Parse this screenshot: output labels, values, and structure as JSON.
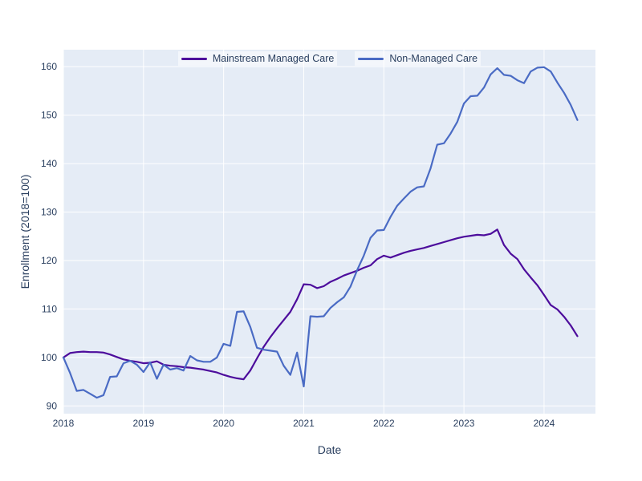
{
  "figure": {
    "background": "#ffffff",
    "plot_background": "#E5ECF6",
    "grid_color": "#ffffff",
    "text_color": "#2a3f5f"
  },
  "legend": {
    "items": [
      {
        "label": "Mainstream Managed Care",
        "color": "#4d0d9c"
      },
      {
        "label": "Non-Managed Care",
        "color": "#4a6bc4"
      }
    ]
  },
  "chart_data": {
    "type": "line",
    "title": "",
    "xlabel": "Date",
    "ylabel": "Enrollment (2018=100)",
    "grid": true,
    "legend_position": "top-center",
    "x_tick_labels": [
      "2018",
      "2019",
      "2020",
      "2021",
      "2022",
      "2023",
      "2024"
    ],
    "x_tick_months": [
      0,
      12,
      24,
      36,
      48,
      60,
      72
    ],
    "y_ticks": [
      90,
      100,
      110,
      120,
      130,
      140,
      150,
      160
    ],
    "ylim": [
      88.4,
      163.5
    ],
    "xlim_months": [
      0,
      79.7
    ],
    "x": [
      "2018-01",
      "2018-02",
      "2018-03",
      "2018-04",
      "2018-05",
      "2018-06",
      "2018-07",
      "2018-08",
      "2018-09",
      "2018-10",
      "2018-11",
      "2018-12",
      "2019-01",
      "2019-02",
      "2019-03",
      "2019-04",
      "2019-05",
      "2019-06",
      "2019-07",
      "2019-08",
      "2019-09",
      "2019-10",
      "2019-11",
      "2019-12",
      "2020-01",
      "2020-02",
      "2020-03",
      "2020-04",
      "2020-05",
      "2020-06",
      "2020-07",
      "2020-08",
      "2020-09",
      "2020-10",
      "2020-11",
      "2020-12",
      "2021-01",
      "2021-02",
      "2021-03",
      "2021-04",
      "2021-05",
      "2021-06",
      "2021-07",
      "2021-08",
      "2021-09",
      "2021-10",
      "2021-11",
      "2021-12",
      "2022-01",
      "2022-02",
      "2022-03",
      "2022-04",
      "2022-05",
      "2022-06",
      "2022-07",
      "2022-08",
      "2022-09",
      "2022-10",
      "2022-11",
      "2022-12",
      "2023-01",
      "2023-02",
      "2023-03",
      "2023-04",
      "2023-05",
      "2023-06",
      "2023-07",
      "2023-08",
      "2023-09",
      "2023-10",
      "2023-11",
      "2023-12",
      "2024-01",
      "2024-02",
      "2024-03",
      "2024-04",
      "2024-05",
      "2024-06"
    ],
    "series": [
      {
        "name": "Mainstream Managed Care",
        "color": "#4d0d9c",
        "values": [
          100.0,
          100.9,
          101.1,
          101.2,
          101.1,
          101.1,
          101.0,
          100.6,
          100.1,
          99.6,
          99.3,
          99.1,
          98.8,
          98.9,
          99.2,
          98.5,
          98.3,
          98.2,
          98.0,
          97.9,
          97.7,
          97.5,
          97.2,
          96.9,
          96.4,
          96.0,
          95.7,
          95.5,
          97.3,
          99.8,
          102.2,
          104.2,
          106.0,
          107.7,
          109.4,
          112.0,
          115.1,
          115.0,
          114.3,
          114.7,
          115.6,
          116.2,
          116.9,
          117.4,
          117.9,
          118.5,
          119.0,
          120.3,
          121.0,
          120.6,
          121.1,
          121.6,
          122.0,
          122.3,
          122.6,
          123.0,
          123.4,
          123.8,
          124.2,
          124.6,
          124.9,
          125.1,
          125.3,
          125.2,
          125.5,
          126.4,
          123.2,
          121.4,
          120.3,
          118.2,
          116.5,
          114.9,
          112.9,
          110.8,
          109.9,
          108.4,
          106.6,
          104.4
        ]
      },
      {
        "name": "Non-Managed Care",
        "color": "#4a6bc4",
        "values": [
          100.0,
          96.8,
          93.1,
          93.3,
          92.5,
          91.7,
          92.2,
          96.0,
          96.1,
          98.8,
          99.3,
          98.5,
          97.0,
          99.0,
          95.6,
          98.5,
          97.5,
          97.8,
          97.3,
          100.3,
          99.4,
          99.1,
          99.1,
          100.0,
          102.8,
          102.4,
          109.4,
          109.5,
          106.3,
          102.0,
          101.6,
          101.4,
          101.2,
          98.3,
          96.4,
          101.0,
          94.0,
          108.5,
          108.4,
          108.5,
          110.2,
          111.4,
          112.4,
          114.6,
          118.0,
          121.0,
          124.7,
          126.2,
          126.3,
          129.0,
          131.3,
          132.8,
          134.2,
          135.1,
          135.3,
          139.0,
          143.9,
          144.2,
          146.2,
          148.6,
          152.4,
          153.9,
          154.0,
          155.7,
          158.4,
          159.7,
          158.3,
          158.1,
          157.2,
          156.6,
          159.0,
          159.8,
          159.9,
          159.0,
          156.7,
          154.6,
          152.1,
          149.0
        ]
      }
    ]
  }
}
